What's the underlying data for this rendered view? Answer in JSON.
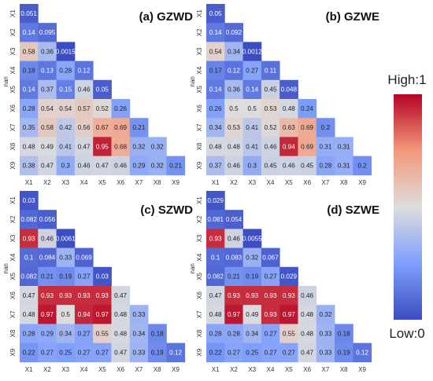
{
  "colors": {
    "low": "#3b4cc0",
    "mid": "#dddddd",
    "high": "#b40426"
  },
  "colorbar": {
    "high_label": "High:1",
    "low_label": "Low:0"
  },
  "chart_data": [
    {
      "type": "heatmap",
      "title": "(a) GZWD",
      "x_ticks": [
        "X1",
        "X2",
        "X3",
        "X4",
        "X5",
        "X6",
        "X7",
        "X8",
        "X9"
      ],
      "y_ticks": [
        "X1",
        "X2",
        "X3",
        "X4",
        "X5",
        "X6",
        "X7",
        "X8",
        "X9"
      ],
      "y_extra_label": "nan",
      "values": [
        [
          0.051
        ],
        [
          0.14,
          0.095
        ],
        [
          0.58,
          0.36,
          0.0015
        ],
        [
          0.18,
          0.13,
          0.28,
          0.12
        ],
        [
          0.14,
          0.37,
          0.15,
          0.46,
          0.05
        ],
        [
          0.28,
          0.54,
          0.54,
          0.57,
          0.52,
          0.26
        ],
        [
          0.35,
          0.58,
          0.42,
          0.56,
          0.67,
          0.69,
          0.21
        ],
        [
          0.48,
          0.49,
          0.41,
          0.47,
          0.95,
          0.68,
          0.32,
          0.32
        ],
        [
          0.38,
          0.47,
          0.3,
          0.46,
          0.47,
          0.46,
          0.29,
          0.32,
          0.21
        ]
      ]
    },
    {
      "type": "heatmap",
      "title": "(b) GZWE",
      "x_ticks": [
        "X1",
        "X2",
        "X3",
        "X4",
        "X5",
        "X6",
        "X7",
        "X8",
        "X9"
      ],
      "y_ticks": [
        "X1",
        "X2",
        "X3",
        "X4",
        "X5",
        "X6",
        "X7",
        "X8",
        "X9"
      ],
      "y_extra_label": "nan",
      "values": [
        [
          0.05
        ],
        [
          0.14,
          0.092
        ],
        [
          0.54,
          0.34,
          0.0012
        ],
        [
          0.17,
          0.12,
          0.27,
          0.11
        ],
        [
          0.14,
          0.36,
          0.14,
          0.45,
          0.048
        ],
        [
          0.26,
          0.5,
          0.5,
          0.53,
          0.48,
          0.24
        ],
        [
          0.34,
          0.53,
          0.41,
          0.52,
          0.63,
          0.69,
          0.2
        ],
        [
          0.48,
          0.48,
          0.41,
          0.46,
          0.94,
          0.69,
          0.31,
          0.31
        ],
        [
          0.37,
          0.46,
          0.3,
          0.45,
          0.46,
          0.45,
          0.28,
          0.31,
          0.2
        ]
      ]
    },
    {
      "type": "heatmap",
      "title": "(c) SZWD",
      "x_ticks": [
        "X1",
        "X2",
        "X3",
        "X4",
        "X5",
        "X6",
        "X7",
        "X8",
        "X9"
      ],
      "y_ticks": [
        "X1",
        "X2",
        "X3",
        "X4",
        "X5",
        "X6",
        "X7",
        "X8",
        "X9"
      ],
      "y_extra_label": "nan",
      "values": [
        [
          0.03
        ],
        [
          0.082,
          0.056
        ],
        [
          0.93,
          0.46,
          0.0061
        ],
        [
          0.1,
          0.084,
          0.33,
          0.069
        ],
        [
          0.082,
          0.21,
          0.19,
          0.27,
          0.03
        ],
        [
          0.47,
          0.93,
          0.93,
          0.93,
          0.93,
          0.47
        ],
        [
          0.48,
          0.97,
          0.5,
          0.94,
          0.97,
          0.48,
          0.33
        ],
        [
          0.28,
          0.29,
          0.34,
          0.27,
          0.55,
          0.48,
          0.34,
          0.18
        ],
        [
          0.22,
          0.27,
          0.25,
          0.27,
          0.27,
          0.47,
          0.33,
          0.19,
          0.12
        ]
      ]
    },
    {
      "type": "heatmap",
      "title": "(d) SZWE",
      "x_ticks": [
        "X1",
        "X2",
        "X3",
        "X4",
        "X5",
        "X6",
        "X7",
        "X8",
        "X9"
      ],
      "y_ticks": [
        "X1",
        "X2",
        "X3",
        "X4",
        "X5",
        "X6",
        "X7",
        "X8",
        "X9"
      ],
      "y_extra_label": "nan",
      "values": [
        [
          0.029
        ],
        [
          0.081,
          0.054
        ],
        [
          0.93,
          0.46,
          0.0055
        ],
        [
          0.1,
          0.083,
          0.32,
          0.067
        ],
        [
          0.082,
          0.21,
          0.19,
          0.27,
          0.029
        ],
        [
          0.47,
          0.93,
          0.93,
          0.93,
          0.93,
          0.46
        ],
        [
          0.48,
          0.97,
          0.49,
          0.93,
          0.97,
          0.48,
          0.32
        ],
        [
          0.28,
          0.28,
          0.34,
          0.27,
          0.55,
          0.48,
          0.33,
          0.18
        ],
        [
          0.22,
          0.27,
          0.25,
          0.27,
          0.27,
          0.47,
          0.33,
          0.19,
          0.12
        ]
      ]
    }
  ]
}
